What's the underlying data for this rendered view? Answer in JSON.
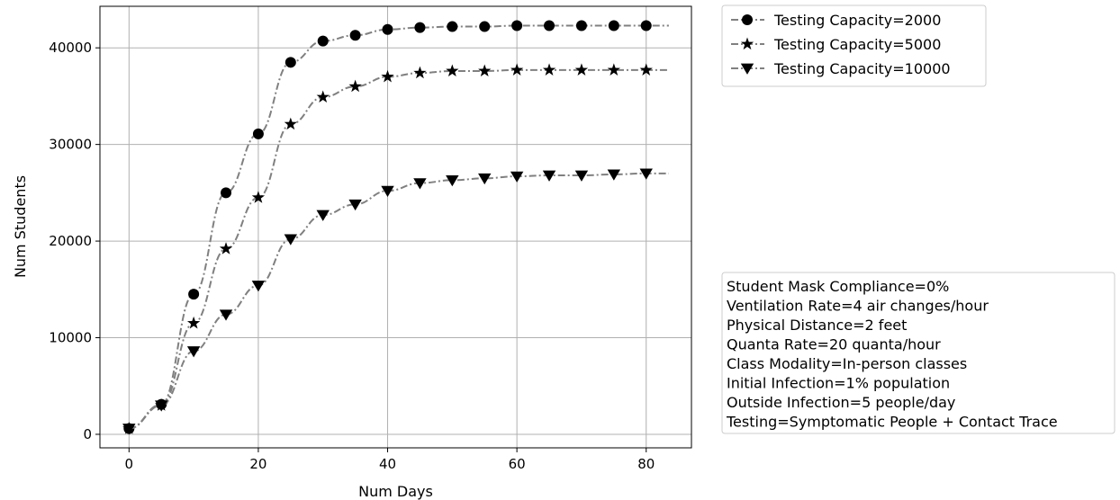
{
  "chart_data": {
    "type": "line",
    "xlabel": "Num Days",
    "ylabel": "Num Students",
    "xlim": [
      -4.5,
      87
    ],
    "ylim": [
      -1400,
      44300
    ],
    "xticks": [
      0,
      20,
      40,
      60,
      80
    ],
    "yticks": [
      0,
      10000,
      20000,
      30000,
      40000
    ],
    "grid": true,
    "legend_position": "outside top-right",
    "line_color": "#808080",
    "marker_color": "#000000",
    "x": [
      0,
      5,
      10,
      15,
      20,
      25,
      30,
      35,
      40,
      45,
      50,
      55,
      60,
      65,
      70,
      75,
      80
    ],
    "series": [
      {
        "name": "Testing Capacity=2000",
        "marker": "circle",
        "values": [
          600,
          3100,
          14500,
          25000,
          31100,
          38500,
          40700,
          41300,
          41900,
          42100,
          42200,
          42200,
          42300,
          42300,
          42300,
          42300,
          42300
        ]
      },
      {
        "name": "Testing Capacity=5000",
        "marker": "star",
        "values": [
          600,
          3000,
          11500,
          19200,
          24500,
          32100,
          34900,
          36000,
          37000,
          37400,
          37600,
          37600,
          37700,
          37700,
          37700,
          37700,
          37700
        ]
      },
      {
        "name": "Testing Capacity=10000",
        "marker": "triangle-down",
        "values": [
          600,
          3000,
          8600,
          12400,
          15400,
          20200,
          22700,
          23800,
          25200,
          26000,
          26300,
          26500,
          26700,
          26800,
          26800,
          26900,
          27000
        ]
      }
    ],
    "annotations": [
      "Student Mask Compliance=0%",
      "Ventilation Rate=4 air changes/hour",
      "Physical Distance=2 feet",
      "Quanta Rate=20 quanta/hour",
      "Class Modality=In-person classes",
      "Initial Infection=1% population",
      "Outside Infection=5 people/day",
      "Testing=Symptomatic People + Contact Trace"
    ]
  }
}
